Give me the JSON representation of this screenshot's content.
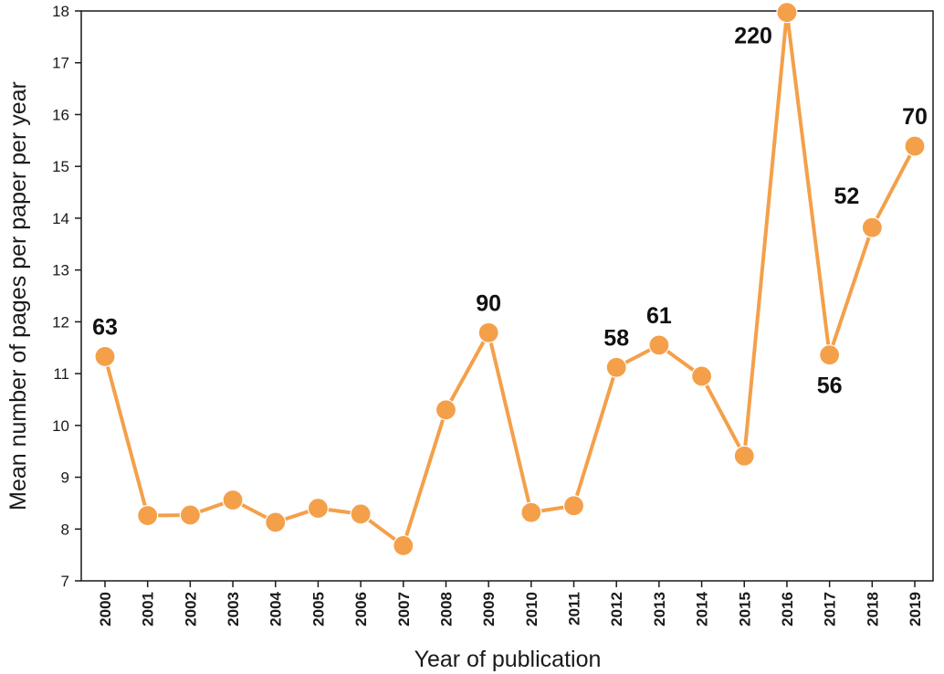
{
  "chart_data": {
    "type": "line",
    "title": "",
    "xlabel": "Year of publication",
    "ylabel": "Mean number of pages per paper per year",
    "ylim": [
      7,
      18
    ],
    "yticks": [
      7,
      8,
      9,
      10,
      11,
      12,
      13,
      14,
      15,
      16,
      17,
      18
    ],
    "grid": false,
    "legend": "none",
    "color": "#f4a04a",
    "categories": [
      "2000",
      "2001",
      "2002",
      "2003",
      "2004",
      "2005",
      "2006",
      "2007",
      "2008",
      "2009",
      "2010",
      "2011",
      "2012",
      "2013",
      "2014",
      "2015",
      "2016",
      "2017",
      "2018",
      "2019"
    ],
    "series": [
      {
        "values": [
          11.33,
          8.26,
          8.27,
          8.56,
          8.13,
          8.4,
          8.29,
          7.68,
          10.3,
          11.79,
          8.32,
          8.45,
          11.12,
          11.55,
          10.95,
          9.41,
          17.97,
          11.36,
          13.82,
          15.39
        ]
      }
    ],
    "annotations": [
      {
        "category": "2000",
        "text": "63",
        "position": "above"
      },
      {
        "category": "2009",
        "text": "90",
        "position": "above"
      },
      {
        "category": "2012",
        "text": "58",
        "position": "above"
      },
      {
        "category": "2013",
        "text": "61",
        "position": "above"
      },
      {
        "category": "2016",
        "text": "220",
        "position": "left"
      },
      {
        "category": "2017",
        "text": "56",
        "position": "below"
      },
      {
        "category": "2018",
        "text": "52",
        "position": "above-left"
      },
      {
        "category": "2019",
        "text": "70",
        "position": "above"
      }
    ]
  }
}
